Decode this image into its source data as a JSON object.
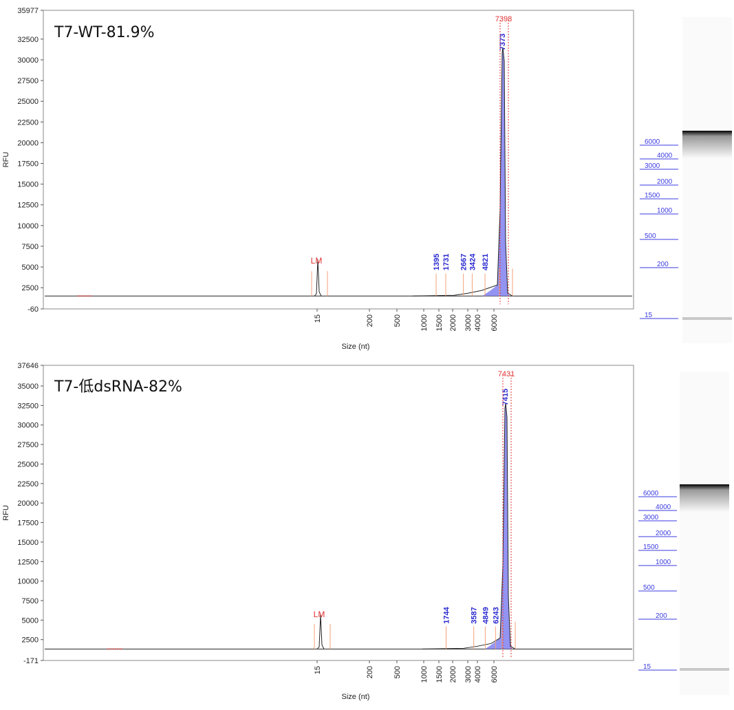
{
  "chart_data": [
    {
      "type": "line",
      "title": "T7-WT-81.9%",
      "ylabel": "RFU",
      "xlabel": "Size (nt)",
      "ylim": [
        -60,
        35977
      ],
      "y_ticks": [
        -60,
        2500,
        5000,
        7500,
        10000,
        12500,
        15000,
        17500,
        20000,
        22500,
        25000,
        27500,
        30000,
        32500,
        35977
      ],
      "x_ticks": [
        "15",
        "200",
        "500",
        "1000",
        "1500",
        "2000",
        "3000",
        "4000",
        "6000"
      ],
      "lower_marker": "LM",
      "peak_labels": [
        "1395",
        "1731",
        "2667",
        "3424",
        "4821",
        "7373"
      ],
      "main_peak_label": "7398",
      "main_peak_rfu": 30000,
      "lower_marker_rfu": 4400,
      "ladder_bands": [
        "6000",
        "4000",
        "3000",
        "2000",
        "1500",
        "1000",
        "500",
        "200",
        "15"
      ]
    },
    {
      "type": "line",
      "title": "T7-低dsRNA-82%",
      "ylabel": "RFU",
      "xlabel": "Size (nt)",
      "ylim": [
        -171,
        37646
      ],
      "y_ticks": [
        -171,
        2500,
        5000,
        7500,
        10000,
        12500,
        15000,
        17500,
        20000,
        22500,
        25000,
        27500,
        30000,
        32500,
        35000,
        37646
      ],
      "x_ticks": [
        "15",
        "200",
        "500",
        "1000",
        "1500",
        "2000",
        "3000",
        "4000",
        "6000"
      ],
      "lower_marker": "LM",
      "peak_labels": [
        "1744",
        "3587",
        "4849",
        "6243",
        "7415"
      ],
      "main_peak_label": "7431",
      "main_peak_rfu": 31500,
      "lower_marker_rfu": 4400,
      "ladder_bands": [
        "6000",
        "4000",
        "3000",
        "2000",
        "1500",
        "1000",
        "500",
        "200",
        "15"
      ]
    }
  ]
}
